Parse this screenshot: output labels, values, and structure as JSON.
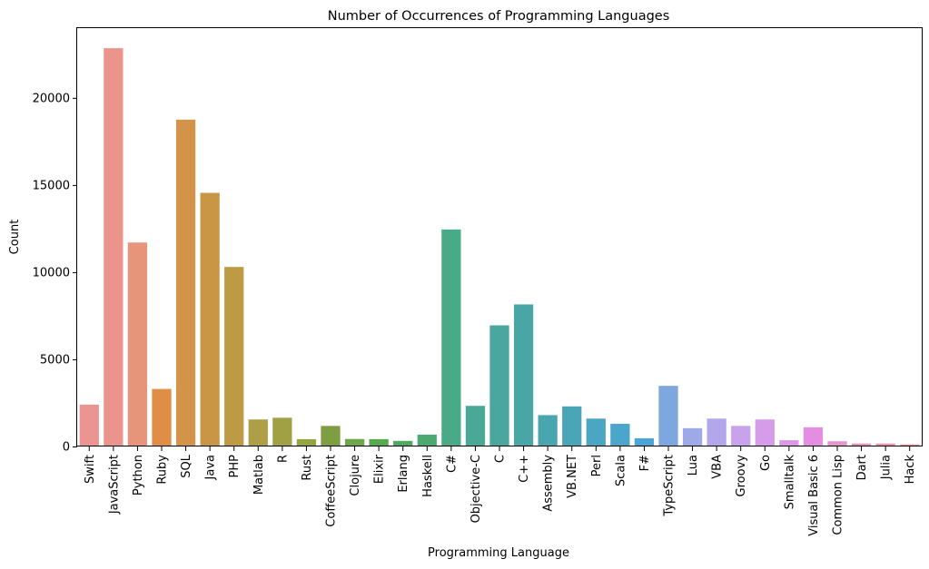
{
  "chart_data": {
    "type": "bar",
    "title": "Number of Occurrences of Programming Languages",
    "xlabel": "Programming Language",
    "ylabel": "Count",
    "ylim": [
      0,
      24000
    ],
    "yticks": [
      0,
      5000,
      10000,
      15000,
      20000
    ],
    "grid": false,
    "legend": "none",
    "categories": [
      "Swift",
      "JavaScript",
      "Python",
      "Ruby",
      "SQL",
      "Java",
      "PHP",
      "Matlab",
      "R",
      "Rust",
      "CoffeeScript",
      "Clojure",
      "Elixir",
      "Erlang",
      "Haskell",
      "C#",
      "Objective-C",
      "C",
      "C++",
      "Assembly",
      "VB.NET",
      "Perl",
      "Scala",
      "F#",
      "TypeScript",
      "Lua",
      "VBA",
      "Groovy",
      "Go",
      "Smalltalk",
      "Visual Basic 6",
      "Common Lisp",
      "Dart",
      "Julia",
      "Hack"
    ],
    "values": [
      2400,
      22850,
      11700,
      3300,
      18750,
      14550,
      10300,
      1550,
      1650,
      420,
      1180,
      430,
      420,
      320,
      680,
      12450,
      2330,
      6950,
      8150,
      1800,
      2300,
      1600,
      1300,
      470,
      3480,
      1050,
      1600,
      1180,
      1550,
      360,
      1100,
      300,
      170,
      170,
      120
    ],
    "colors": [
      "#ea9592",
      "#ea948c",
      "#e6957a",
      "#e08d46",
      "#d3944a",
      "#c89645",
      "#bd9a44",
      "#ae9e46",
      "#a0a145",
      "#95a440",
      "#7f9e43",
      "#6ea64a",
      "#58aa4f",
      "#4faa61",
      "#4caa70",
      "#48aa87",
      "#4aa897",
      "#4aa79f",
      "#4aa6a6",
      "#49a6ae",
      "#4aa6b6",
      "#4aa6c1",
      "#4aa6cb",
      "#4aa6d6",
      "#7ea7e0",
      "#9eaae8",
      "#b4a6eb",
      "#c8a2eb",
      "#d69cea",
      "#dc98e6",
      "#e58de0",
      "#e893cc",
      "#ea91bb",
      "#ea94ae",
      "#eb949e"
    ]
  }
}
